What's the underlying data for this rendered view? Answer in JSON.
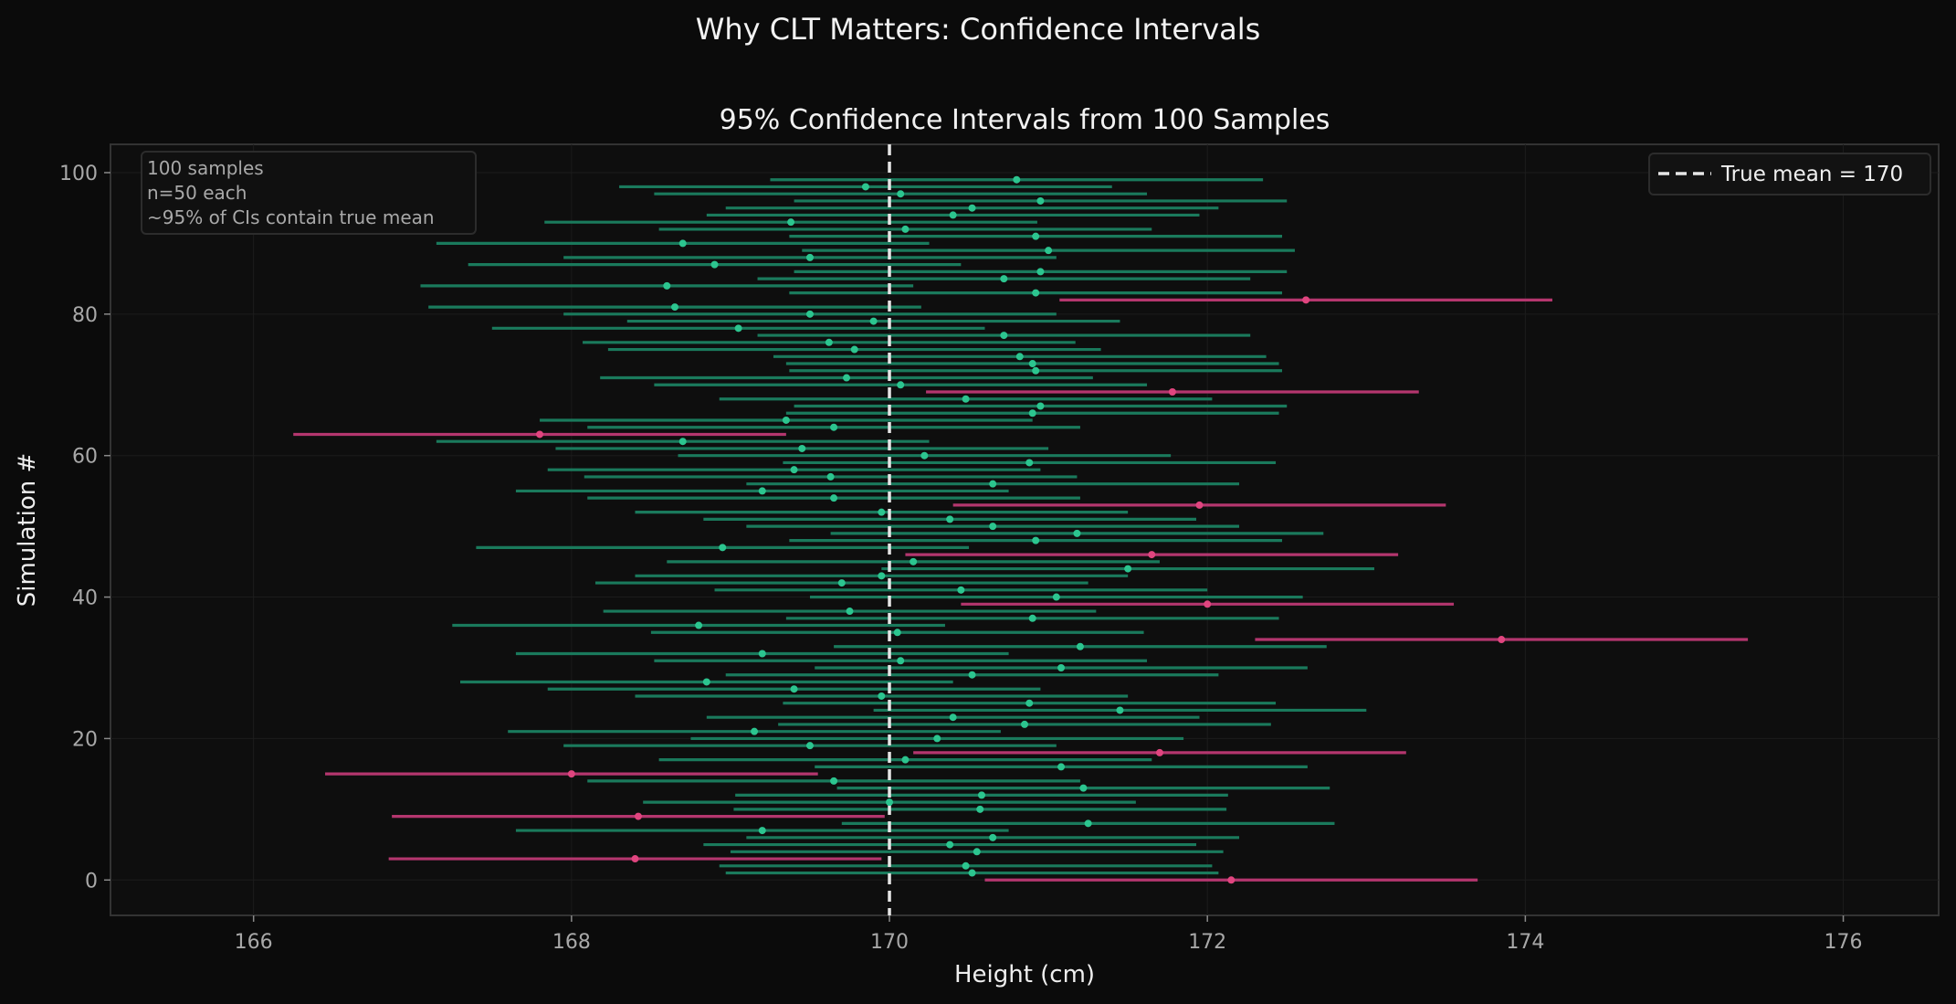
{
  "suptitle": "Why CLT Matters: Confidence Intervals",
  "colors": {
    "background": "#0b0b0b",
    "plot_background": "#0e0e0e",
    "contains_true_mean": "#1a7a5c",
    "contains_true_mean_point": "#2cc58f",
    "misses_true_mean": "#b4366e",
    "misses_true_mean_point": "#e0457f",
    "true_mean_line": "#e6e6e6",
    "grid": "#1c1c1c"
  },
  "info_box": {
    "lines": [
      "100 samples",
      "n=50 each",
      "~95% of CIs contain true mean"
    ]
  },
  "chart_data": {
    "type": "scatter",
    "title": "95% Confidence Intervals from 100 Samples",
    "xlabel": "Height (cm)",
    "ylabel": "Simulation #",
    "xlim": [
      165.1,
      176.6
    ],
    "ylim": [
      -5,
      104
    ],
    "xticks": [
      166,
      168,
      170,
      172,
      174,
      176
    ],
    "yticks": [
      0,
      20,
      40,
      60,
      80,
      100
    ],
    "grid": true,
    "legend": {
      "position": "top-right",
      "entries": [
        {
          "label": "True mean = 170",
          "style": "dashed"
        }
      ]
    },
    "true_mean": 170,
    "ci_half_width": 1.55,
    "sample_means": [
      172.15,
      170.52,
      170.48,
      168.4,
      170.55,
      170.38,
      170.65,
      169.2,
      171.25,
      168.42,
      170.57,
      170.0,
      170.58,
      171.22,
      169.65,
      168.0,
      171.08,
      170.1,
      171.7,
      169.5,
      170.3,
      169.15,
      170.85,
      170.4,
      171.45,
      170.88,
      169.95,
      169.4,
      168.85,
      170.52,
      171.08,
      170.07,
      169.2,
      171.2,
      173.85,
      170.05,
      168.8,
      170.9,
      169.75,
      172.0,
      171.05,
      170.45,
      169.7,
      169.95,
      171.5,
      170.15,
      171.65,
      168.95,
      170.92,
      171.18,
      170.65,
      170.38,
      169.95,
      171.95,
      169.65,
      169.2,
      170.65,
      169.63,
      169.4,
      170.88,
      170.22,
      169.45,
      168.7,
      167.8,
      169.65,
      169.35,
      170.9,
      170.95,
      170.48,
      171.78,
      170.07,
      169.73,
      170.92,
      170.9,
      170.82,
      169.78,
      169.62,
      170.72,
      169.05,
      169.9,
      169.5,
      168.65,
      172.62,
      170.92,
      168.6,
      170.72,
      170.95,
      168.9,
      169.5,
      171.0,
      168.7,
      170.92,
      170.1,
      169.38,
      170.4,
      170.52,
      170.95,
      170.07,
      169.85,
      170.8
    ]
  }
}
